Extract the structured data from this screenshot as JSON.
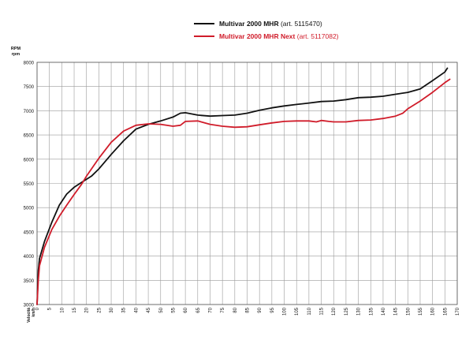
{
  "legend": [
    {
      "name": "Multivar 2000 MHR",
      "art": "(art. 5115470)",
      "color": "#111111"
    },
    {
      "name": "Multivar 2000 MHR Next",
      "art": "(art. 5117082)",
      "color": "#d01c2a"
    }
  ],
  "chart_data": {
    "type": "line",
    "ylabel": [
      "RPM",
      "rpm"
    ],
    "xlabel": [
      "Velocità",
      "km/h"
    ],
    "xlim": [
      0,
      170
    ],
    "ylim": [
      3000,
      8000
    ],
    "xticks": [
      0,
      5,
      10,
      15,
      20,
      25,
      30,
      35,
      40,
      45,
      50,
      55,
      60,
      65,
      70,
      75,
      80,
      85,
      90,
      95,
      100,
      105,
      110,
      115,
      120,
      125,
      130,
      135,
      140,
      145,
      150,
      155,
      160,
      165,
      170
    ],
    "yticks": [
      3000,
      3500,
      4000,
      4500,
      5000,
      5500,
      6000,
      6500,
      7000,
      7500,
      8000
    ],
    "grid": true,
    "series": [
      {
        "name": "Multivar 2000 MHR (art. 5115470)",
        "color": "#111111",
        "points": [
          [
            0,
            3000
          ],
          [
            0.5,
            3700
          ],
          [
            1,
            3950
          ],
          [
            3,
            4300
          ],
          [
            6,
            4700
          ],
          [
            9,
            5050
          ],
          [
            12,
            5280
          ],
          [
            15,
            5420
          ],
          [
            18,
            5520
          ],
          [
            22,
            5650
          ],
          [
            25,
            5800
          ],
          [
            30,
            6100
          ],
          [
            35,
            6380
          ],
          [
            40,
            6620
          ],
          [
            45,
            6720
          ],
          [
            50,
            6790
          ],
          [
            55,
            6870
          ],
          [
            58,
            6950
          ],
          [
            60,
            6960
          ],
          [
            65,
            6910
          ],
          [
            70,
            6890
          ],
          [
            75,
            6900
          ],
          [
            80,
            6910
          ],
          [
            85,
            6950
          ],
          [
            90,
            7010
          ],
          [
            95,
            7060
          ],
          [
            100,
            7100
          ],
          [
            105,
            7130
          ],
          [
            110,
            7160
          ],
          [
            115,
            7190
          ],
          [
            120,
            7200
          ],
          [
            125,
            7230
          ],
          [
            130,
            7270
          ],
          [
            135,
            7280
          ],
          [
            140,
            7300
          ],
          [
            145,
            7340
          ],
          [
            150,
            7380
          ],
          [
            155,
            7450
          ],
          [
            160,
            7620
          ],
          [
            165,
            7800
          ],
          [
            166,
            7880
          ]
        ]
      },
      {
        "name": "Multivar 2000 MHR Next (art. 5117082)",
        "color": "#d01c2a",
        "points": [
          [
            0,
            3000
          ],
          [
            0.5,
            3500
          ],
          [
            1,
            3800
          ],
          [
            3,
            4180
          ],
          [
            6,
            4550
          ],
          [
            9,
            4820
          ],
          [
            12,
            5050
          ],
          [
            15,
            5270
          ],
          [
            18,
            5480
          ],
          [
            20,
            5650
          ],
          [
            25,
            6020
          ],
          [
            30,
            6350
          ],
          [
            35,
            6580
          ],
          [
            40,
            6700
          ],
          [
            45,
            6730
          ],
          [
            50,
            6720
          ],
          [
            55,
            6680
          ],
          [
            58,
            6700
          ],
          [
            60,
            6780
          ],
          [
            65,
            6790
          ],
          [
            70,
            6720
          ],
          [
            75,
            6680
          ],
          [
            80,
            6660
          ],
          [
            85,
            6670
          ],
          [
            90,
            6710
          ],
          [
            95,
            6750
          ],
          [
            100,
            6780
          ],
          [
            105,
            6790
          ],
          [
            110,
            6790
          ],
          [
            113,
            6770
          ],
          [
            115,
            6800
          ],
          [
            118,
            6780
          ],
          [
            120,
            6770
          ],
          [
            125,
            6770
          ],
          [
            130,
            6800
          ],
          [
            135,
            6810
          ],
          [
            140,
            6840
          ],
          [
            145,
            6890
          ],
          [
            148,
            6950
          ],
          [
            150,
            7040
          ],
          [
            155,
            7200
          ],
          [
            160,
            7380
          ],
          [
            165,
            7580
          ],
          [
            167,
            7650
          ]
        ]
      }
    ]
  }
}
